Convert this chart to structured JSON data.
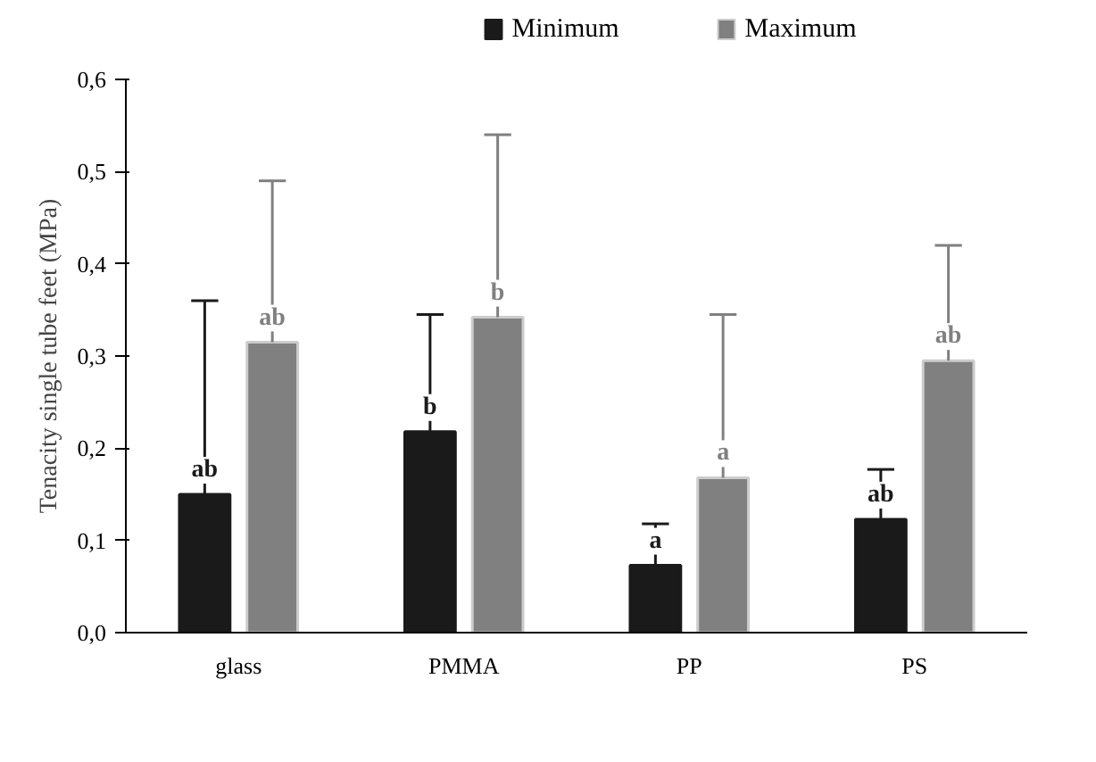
{
  "chart_data": {
    "type": "bar",
    "ylabel": "Tenacity single tube feet (MPa)",
    "categories": [
      "glass",
      "PMMA",
      "PP",
      "PS"
    ],
    "series": [
      {
        "name": "Minimum",
        "color": "#1a1a1a",
        "values": [
          0.15,
          0.218,
          0.073,
          0.123
        ],
        "errors": [
          [
            0.15,
            0.36
          ],
          [
            0.218,
            0.345
          ],
          [
            0.073,
            0.118
          ],
          [
            0.123,
            0.177
          ]
        ],
        "value_labels": [
          "ab",
          "b",
          "a",
          "ab"
        ]
      },
      {
        "name": "Maximum",
        "color": "#808080",
        "values": [
          0.315,
          0.342,
          0.168,
          0.295
        ],
        "errors": [
          [
            0.315,
            0.49
          ],
          [
            0.342,
            0.54
          ],
          [
            0.168,
            0.345
          ],
          [
            0.295,
            0.42
          ]
        ],
        "value_labels": [
          "ab",
          "b",
          "a",
          "ab"
        ]
      }
    ],
    "ylim": [
      0,
      0.6
    ],
    "yticks": [
      {
        "value": 0,
        "label": "0,0"
      },
      {
        "value": 0.1,
        "label": "0,1"
      },
      {
        "value": 0.2,
        "label": "0,2"
      },
      {
        "value": 0.3,
        "label": "0,3"
      },
      {
        "value": 0.4,
        "label": "0,4"
      },
      {
        "value": 0.5,
        "label": "0,5"
      },
      {
        "value": 0.6,
        "label": "0,6"
      }
    ],
    "grid": false,
    "legend": "top"
  }
}
